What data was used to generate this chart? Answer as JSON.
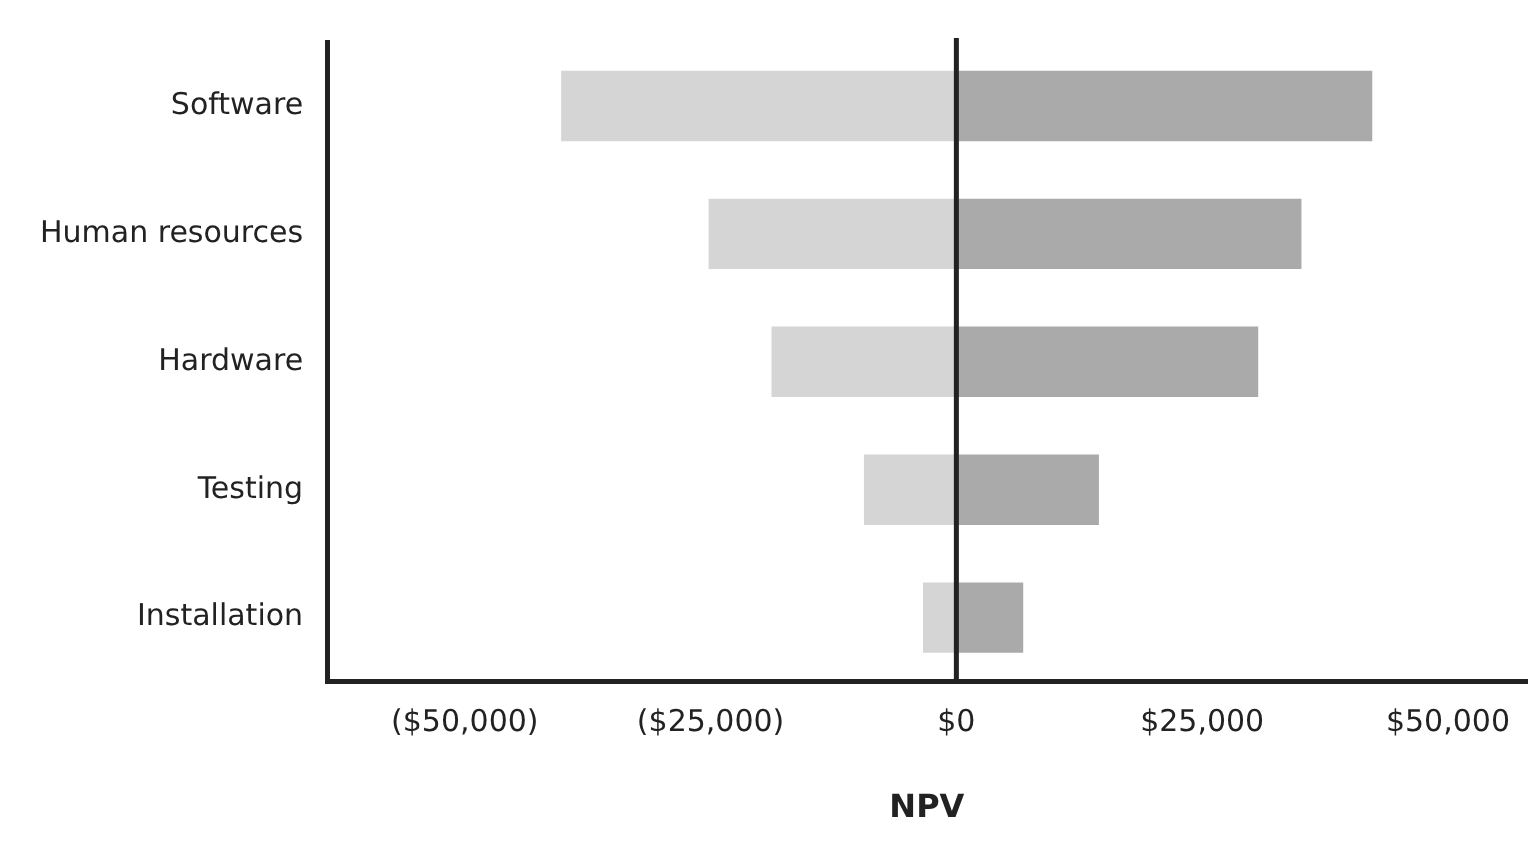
{
  "chart_data": {
    "type": "bar",
    "orientation": "horizontal",
    "stacked": true,
    "xlabel": "NPV",
    "categories": [
      "Software",
      "Human resources",
      "Hardware",
      "Testing",
      "Installation"
    ],
    "series": [
      {
        "color": "#d4d5d4",
        "values": [
          -40200,
          -25200,
          -18800,
          -9400,
          -3400
        ]
      },
      {
        "color": "#a9aaa9",
        "values": [
          42300,
          35100,
          30700,
          14500,
          6800
        ]
      }
    ],
    "xlim": [
      -64000,
      58000
    ],
    "xticks": [
      {
        "value": -50000,
        "label": "($50,000)"
      },
      {
        "value": -25000,
        "label": "($25,000)"
      },
      {
        "value": 0,
        "label": "$0"
      },
      {
        "value": 25000,
        "label": "$25,000"
      },
      {
        "value": 50000,
        "label": "$50,000"
      }
    ],
    "ref_lines": [
      {
        "axis": "x",
        "value": 0,
        "color": "#222222"
      }
    ],
    "grid": false,
    "legend": false
  }
}
